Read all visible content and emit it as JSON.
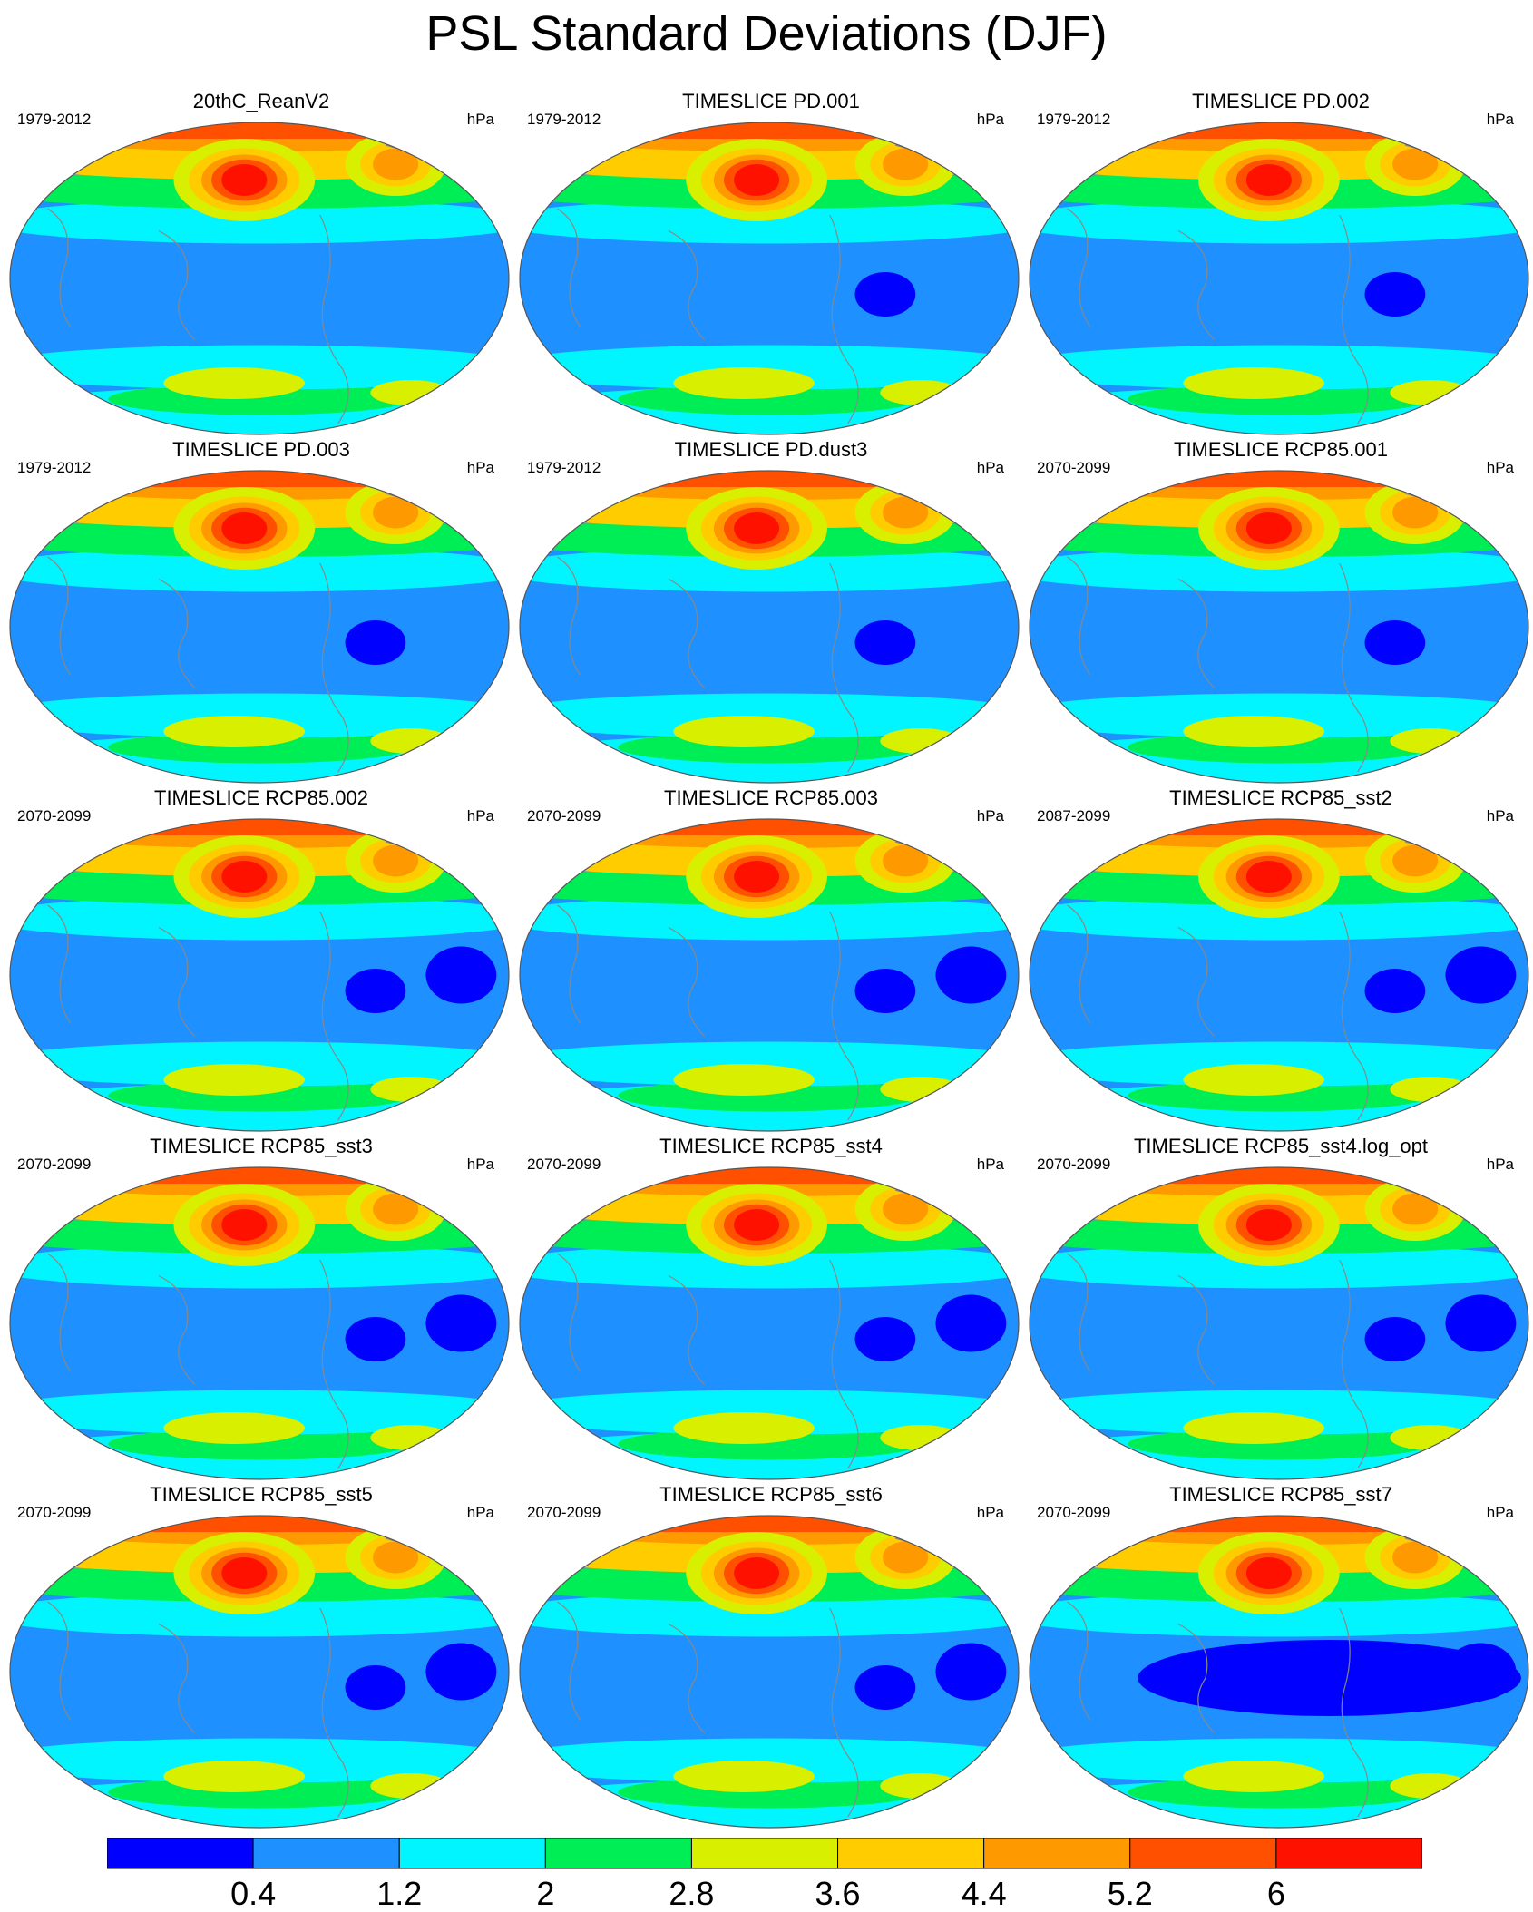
{
  "title": "PSL Standard Deviations (DJF)",
  "panels": [
    {
      "title": "20thC_ReanV2",
      "period": "1979-2012",
      "units": "hPa"
    },
    {
      "title": "TIMESLICE PD.001",
      "period": "1979-2012",
      "units": "hPa"
    },
    {
      "title": "TIMESLICE PD.002",
      "period": "1979-2012",
      "units": "hPa"
    },
    {
      "title": "TIMESLICE PD.003",
      "period": "1979-2012",
      "units": "hPa"
    },
    {
      "title": "TIMESLICE PD.dust3",
      "period": "1979-2012",
      "units": "hPa"
    },
    {
      "title": "TIMESLICE RCP85.001",
      "period": "2070-2099",
      "units": "hPa"
    },
    {
      "title": "TIMESLICE RCP85.002",
      "period": "2070-2099",
      "units": "hPa"
    },
    {
      "title": "TIMESLICE RCP85.003",
      "period": "2070-2099",
      "units": "hPa"
    },
    {
      "title": "TIMESLICE RCP85_sst2",
      "period": "2087-2099",
      "units": "hPa"
    },
    {
      "title": "TIMESLICE RCP85_sst3",
      "period": "2070-2099",
      "units": "hPa"
    },
    {
      "title": "TIMESLICE RCP85_sst4",
      "period": "2070-2099",
      "units": "hPa"
    },
    {
      "title": "TIMESLICE RCP85_sst4.log_opt",
      "period": "2070-2099",
      "units": "hPa"
    },
    {
      "title": "TIMESLICE RCP85_sst5",
      "period": "2070-2099",
      "units": "hPa"
    },
    {
      "title": "TIMESLICE RCP85_sst6",
      "period": "2070-2099",
      "units": "hPa"
    },
    {
      "title": "TIMESLICE RCP85_sst7",
      "period": "2070-2099",
      "units": "hPa"
    }
  ],
  "colorbar": {
    "labels": [
      "0.4",
      "1.2",
      "2",
      "2.8",
      "3.6",
      "4.4",
      "5.2",
      "6"
    ],
    "colors": [
      "#0000ff",
      "#1e90ff",
      "#00f5ff",
      "#00ee55",
      "#d8f000",
      "#ffcc00",
      "#ff9900",
      "#ff5000",
      "#ff1100"
    ]
  },
  "map_colors": {
    "coastline": "#888888",
    "outline": "#555555"
  }
}
